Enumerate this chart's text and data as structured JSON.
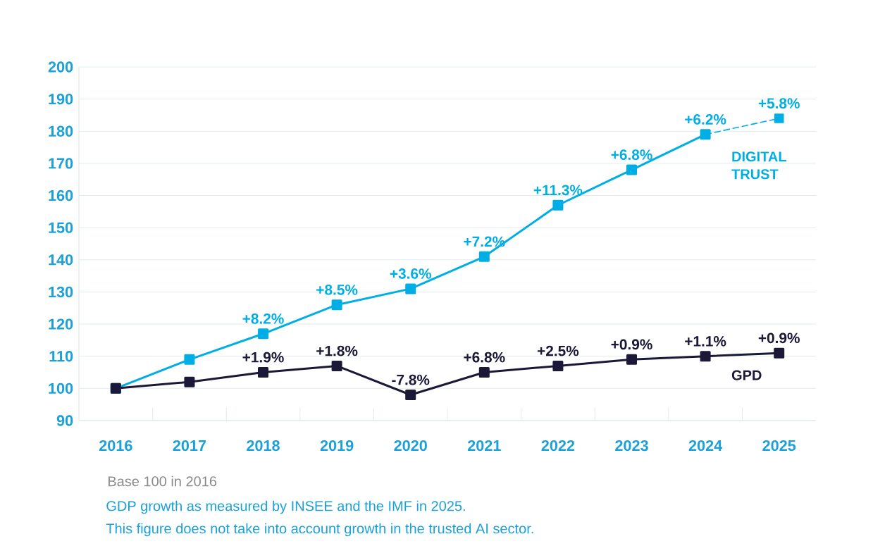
{
  "chart_data": {
    "type": "line",
    "categories": [
      "2016",
      "2017",
      "2018",
      "2019",
      "2020",
      "2021",
      "2022",
      "2023",
      "2024",
      "2025"
    ],
    "series": [
      {
        "name": "DIGITAL TRUST",
        "color": "#00aee6",
        "values": [
          100,
          109,
          117,
          126,
          131,
          141,
          157,
          168,
          179,
          null
        ]
      },
      {
        "color": "#00aee6",
        "line_style": "dashed",
        "values": [
          null,
          null,
          null,
          null,
          null,
          null,
          null,
          null,
          179,
          184
        ]
      },
      {
        "name": "GPD",
        "color": "#1b1838",
        "values": [
          100,
          102,
          105,
          107,
          98,
          105,
          107,
          109,
          110,
          111
        ]
      }
    ],
    "ylim": [
      90,
      200
    ],
    "yticks": [
      90,
      100,
      110,
      120,
      130,
      140,
      150,
      160,
      170,
      180,
      190,
      200
    ],
    "grid": "y",
    "marker": "square",
    "line_style": "solid",
    "annotations": [
      "Base 100 in 2016",
      "GDP growth as measured by INSEE and the IMF in 2025.",
      "This figure does not take into account growth in the trusted AI sector.",
      {
        "text": "+8.2%",
        "x": "2018",
        "y": 117
      },
      {
        "text": "+8.5%",
        "x": "2019",
        "y": 126
      },
      {
        "text": "+3.6%",
        "x": "2020",
        "y": 131
      },
      {
        "text": "+7.2%",
        "x": "2021",
        "y": 141
      },
      {
        "text": "+11.3%",
        "x": "2022",
        "y": 157
      },
      {
        "text": "+6.8%",
        "x": "2023",
        "y": 168
      },
      {
        "text": "+6.2%",
        "x": "2024",
        "y": 179
      },
      {
        "text": "+5.8%",
        "x": "2025",
        "y": 184
      },
      {
        "text": "+1.9%",
        "x": "2018",
        "y": 105
      },
      {
        "text": "+1.8%",
        "x": "2019",
        "y": 107
      },
      {
        "text": "-7.8%",
        "x": "2020",
        "y": 98
      },
      {
        "text": "+6.8%",
        "x": "2021",
        "y": 105
      },
      {
        "text": "+2.5%",
        "x": "2022",
        "y": 107
      },
      {
        "text": "+0.9%",
        "x": "2023",
        "y": 109
      },
      {
        "text": "+1.1%",
        "x": "2024",
        "y": 110
      },
      {
        "text": "+0.9%",
        "x": "2025",
        "y": 111
      }
    ]
  }
}
